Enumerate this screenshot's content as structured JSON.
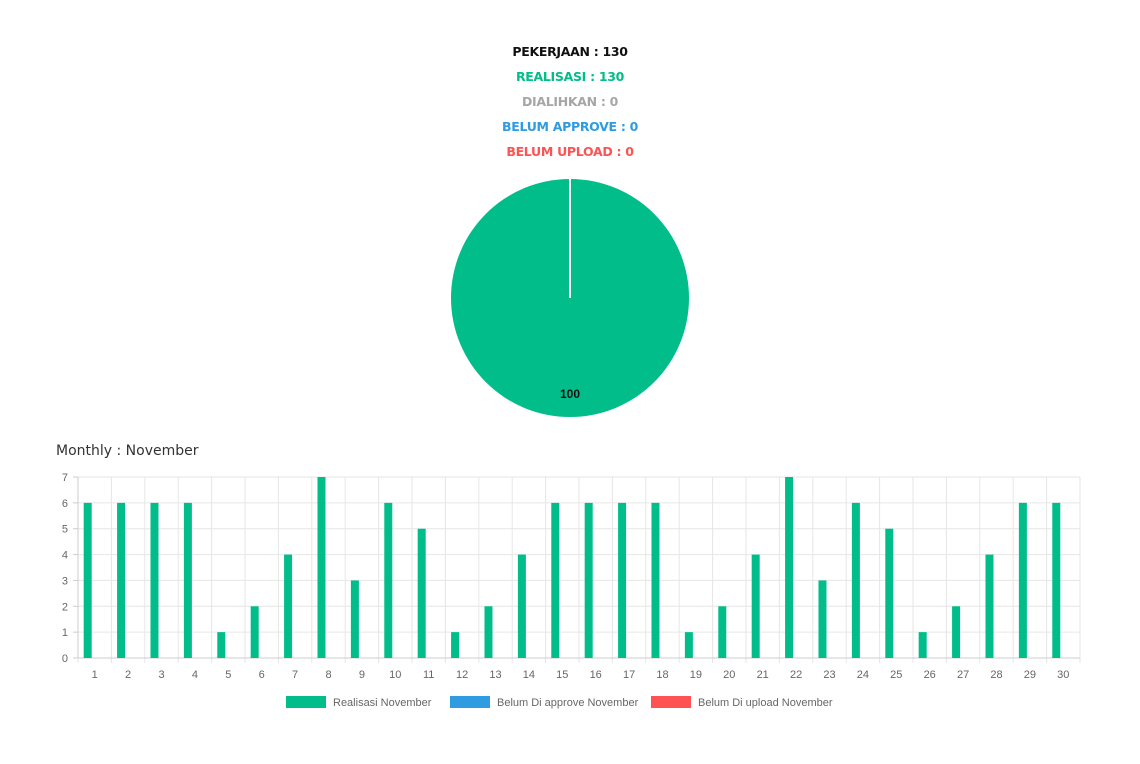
{
  "summary": {
    "pekerjaan": "PEKERJAAN : 130",
    "realisasi": "REALISASI : 130",
    "dialihkan": "DIALIHKAN : 0",
    "belum_approve": "BELUM APPROVE : 0",
    "belum_upload": "BELUM UPLOAD : 0"
  },
  "colors": {
    "realisasi": "#00bd8a",
    "dialihkan": "#a6a6a6",
    "belum_approve": "#2f9be0",
    "belum_upload": "#ff5252",
    "pekerjaan": "#111111"
  },
  "monthly": {
    "title": "Monthly : November"
  },
  "chart_data": [
    {
      "type": "pie",
      "slices": [
        {
          "value": 100,
          "color": "#00bd8a"
        }
      ],
      "data_labels": [
        "100"
      ]
    },
    {
      "type": "bar",
      "categories": [
        "1",
        "2",
        "3",
        "4",
        "5",
        "6",
        "7",
        "8",
        "9",
        "10",
        "11",
        "12",
        "13",
        "14",
        "15",
        "16",
        "17",
        "18",
        "19",
        "20",
        "21",
        "22",
        "23",
        "24",
        "25",
        "26",
        "27",
        "28",
        "29",
        "30"
      ],
      "ylim": [
        0,
        7
      ],
      "yticks": [
        "0",
        "1",
        "2",
        "3",
        "4",
        "5",
        "6",
        "7"
      ],
      "grid": true,
      "legend_position": "bottom",
      "series": [
        {
          "name": "Realisasi November",
          "color": "#00bd8a",
          "values": [
            6,
            6,
            6,
            6,
            1,
            2,
            4,
            7,
            3,
            6,
            5,
            1,
            2,
            4,
            6,
            6,
            6,
            6,
            1,
            2,
            4,
            7,
            3,
            6,
            5,
            1,
            2,
            4,
            6,
            6
          ]
        },
        {
          "name": "Belum Di approve November",
          "color": "#2f9be0",
          "values": [
            0,
            0,
            0,
            0,
            0,
            0,
            0,
            0,
            0,
            0,
            0,
            0,
            0,
            0,
            0,
            0,
            0,
            0,
            0,
            0,
            0,
            0,
            0,
            0,
            0,
            0,
            0,
            0,
            0,
            0
          ]
        },
        {
          "name": "Belum Di upload November",
          "color": "#ff5252",
          "values": [
            0,
            0,
            0,
            0,
            0,
            0,
            0,
            0,
            0,
            0,
            0,
            0,
            0,
            0,
            0,
            0,
            0,
            0,
            0,
            0,
            0,
            0,
            0,
            0,
            0,
            0,
            0,
            0,
            0,
            0
          ]
        }
      ]
    }
  ]
}
